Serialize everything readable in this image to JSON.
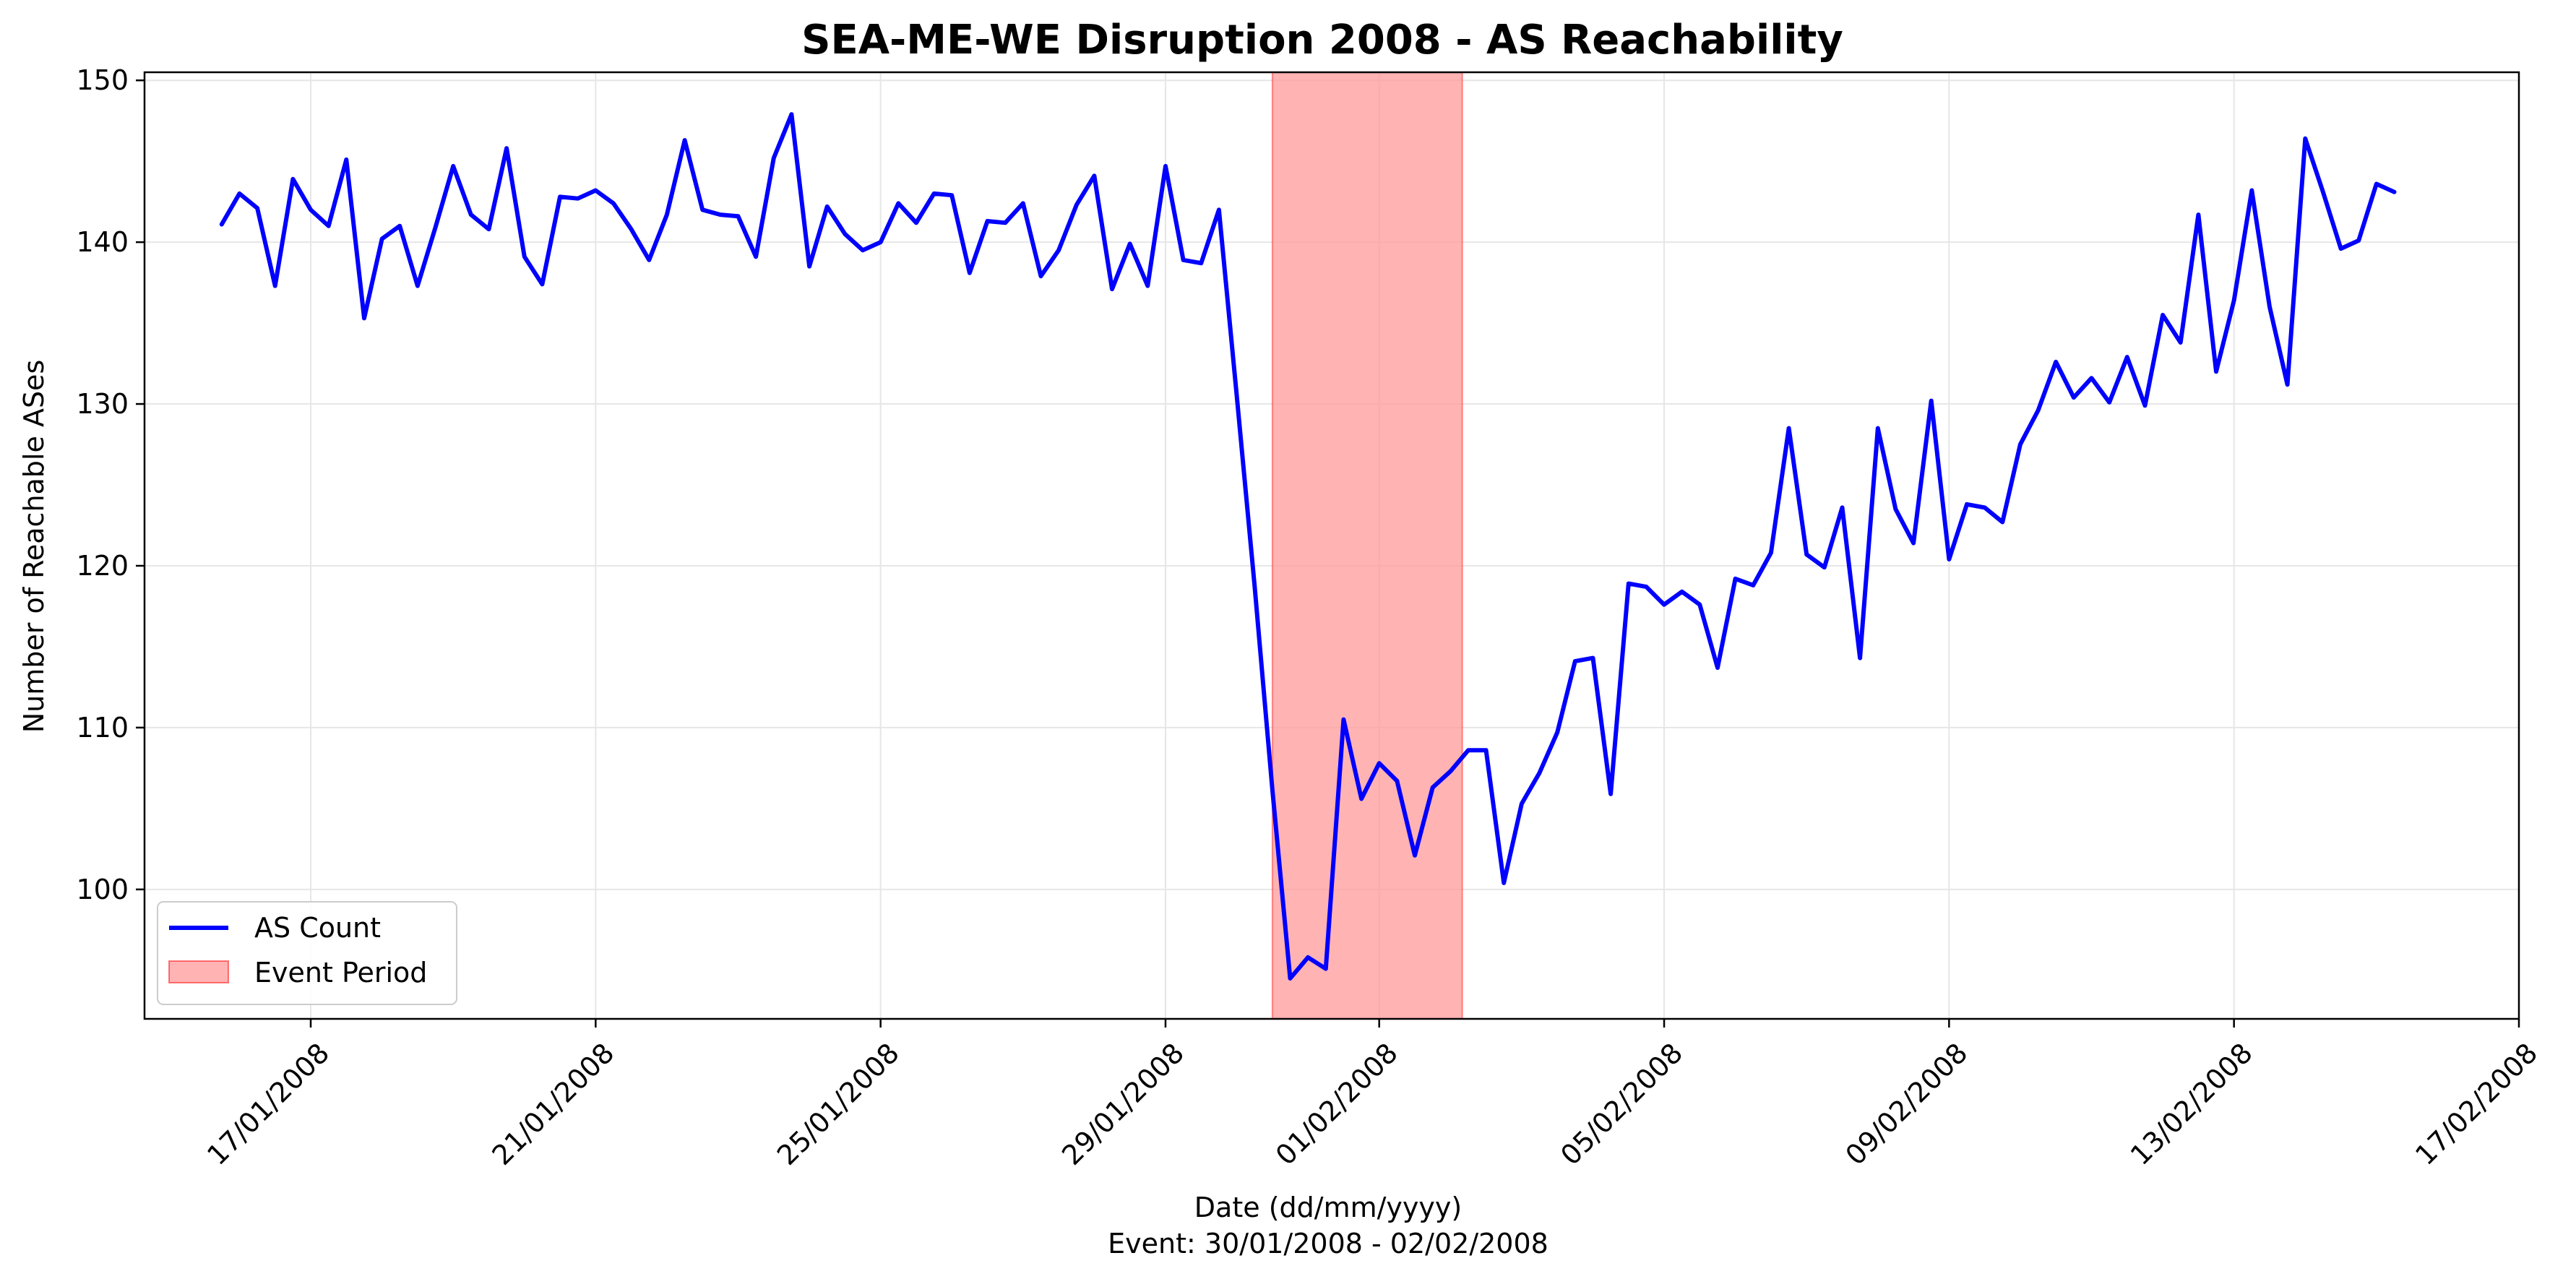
{
  "chart_data": {
    "type": "line",
    "title": "SEA-ME-WE Disruption 2008 - AS Reachability",
    "xlabel": "Date (dd/mm/yyyy)",
    "subtitle": "Event: 30/01/2008 - 02/02/2008",
    "ylabel": "Number of Reachable ASes",
    "ylim": [
      92,
      150.5
    ],
    "xlim": [
      "2008-01-14T16:00",
      "2008-02-17T00:00"
    ],
    "yticks": [
      100,
      110,
      120,
      130,
      140,
      150
    ],
    "xticks": [
      {
        "date": "2008-01-17",
        "label": "17/01/2008"
      },
      {
        "date": "2008-01-21",
        "label": "21/01/2008"
      },
      {
        "date": "2008-01-25",
        "label": "25/01/2008"
      },
      {
        "date": "2008-01-29",
        "label": "29/01/2008"
      },
      {
        "date": "2008-02-01",
        "label": "01/02/2008"
      },
      {
        "date": "2008-02-05",
        "label": "05/02/2008"
      },
      {
        "date": "2008-02-09",
        "label": "09/02/2008"
      },
      {
        "date": "2008-02-13",
        "label": "13/02/2008"
      },
      {
        "date": "2008-02-17",
        "label": "17/02/2008"
      }
    ],
    "grid": true,
    "legend_position": "lower-left",
    "event_period": {
      "start": "2008-01-30T12:00",
      "end": "2008-02-02T04:00",
      "label": "Event Period",
      "color": "#ff9999"
    },
    "series": [
      {
        "name": "AS Count",
        "color": "#0000ff",
        "start": "2008-01-15T18:00",
        "interval_hours": 6,
        "values": [
          141.1,
          143.0,
          142.1,
          137.3,
          143.9,
          142.0,
          141.0,
          145.1,
          135.3,
          140.2,
          141.0,
          137.3,
          140.9,
          144.7,
          141.7,
          140.8,
          145.8,
          139.1,
          137.4,
          142.8,
          142.7,
          143.2,
          142.4,
          140.8,
          138.9,
          141.7,
          146.3,
          142.0,
          141.7,
          141.6,
          139.1,
          145.2,
          147.9,
          138.5,
          142.2,
          140.5,
          139.5,
          140.0,
          142.4,
          141.2,
          143.0,
          142.9,
          138.1,
          141.3,
          141.2,
          142.4,
          137.9,
          139.5,
          142.3,
          144.1,
          137.1,
          139.9,
          137.3,
          144.7,
          138.9,
          138.7,
          142.0,
          130.5,
          118.8,
          106.2,
          94.5,
          95.8,
          95.1,
          110.5,
          105.6,
          107.8,
          106.7,
          102.1,
          106.3,
          107.3,
          108.6,
          108.6,
          100.4,
          105.3,
          107.2,
          109.7,
          114.1,
          114.3,
          105.9,
          118.9,
          118.7,
          117.6,
          118.4,
          117.6,
          113.7,
          119.2,
          118.8,
          120.8,
          128.5,
          120.7,
          119.9,
          123.6,
          114.3,
          128.5,
          123.5,
          121.4,
          130.2,
          120.4,
          123.8,
          123.6,
          122.7,
          127.5,
          129.6,
          132.6,
          130.4,
          131.6,
          130.1,
          132.9,
          129.9,
          135.5,
          133.8,
          141.7,
          132.0,
          136.4,
          143.2,
          136.0,
          131.2,
          146.4,
          143.1,
          139.6,
          140.1,
          143.6,
          143.1
        ]
      }
    ]
  },
  "legend": {
    "line_label": "AS Count",
    "patch_label": "Event Period"
  },
  "colors": {
    "line": "#0000ff",
    "event_fill": "#ff9999",
    "event_edge": "#ff0000",
    "grid": "#e6e6e6"
  }
}
